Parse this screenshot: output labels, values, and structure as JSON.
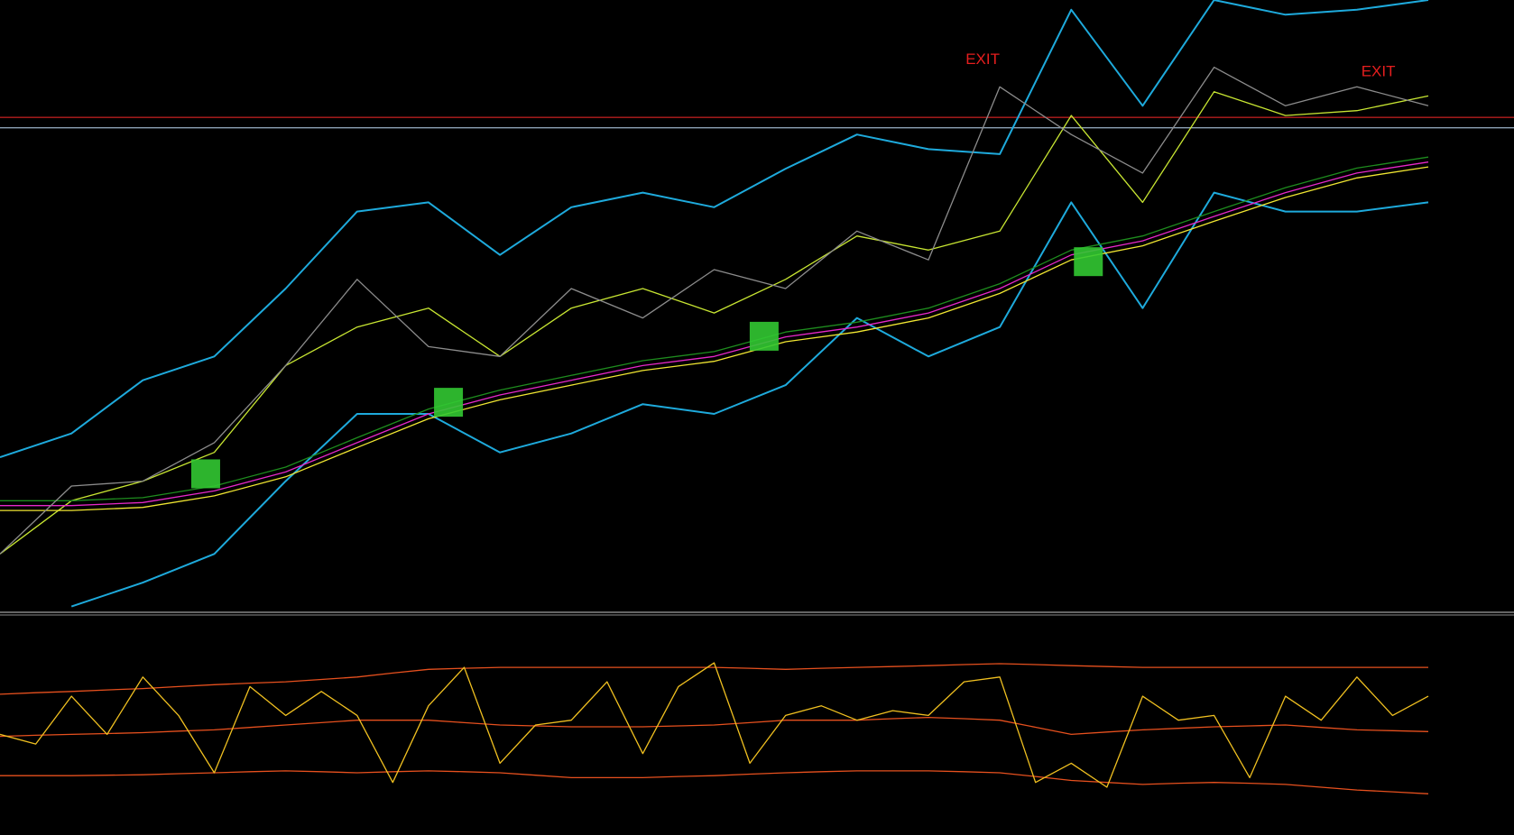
{
  "chart_data": [
    {
      "type": "line",
      "x": [
        0,
        5,
        10,
        15,
        20,
        25,
        30,
        35,
        40,
        45,
        50,
        55,
        60,
        65,
        70,
        75,
        80,
        85,
        90,
        95,
        100
      ],
      "xlim": [
        0,
        106
      ],
      "ylim": [
        0,
        100
      ],
      "hlines": [
        {
          "value": 80.8,
          "color": "#b41e1e"
        },
        {
          "value": 79.1,
          "color": "#8ca0b4"
        }
      ],
      "series": [
        {
          "color": "#1eaadc",
          "values": [
            25.2,
            29.1,
            37.8,
            41.7,
            52.8,
            65.4,
            66.9,
            58.3,
            66.1,
            68.5,
            66.1,
            72.4,
            78.0,
            75.6,
            74.8,
            98.4,
            82.7,
            100,
            97.6,
            98.4,
            100
          ]
        },
        {
          "color": "#1eaadc",
          "values": [
            null,
            0.8,
            4.7,
            9.4,
            21.3,
            32.3,
            32.3,
            26.0,
            29.1,
            33.9,
            32.3,
            37.0,
            48.0,
            41.7,
            46.5,
            66.9,
            49.6,
            68.5,
            65.4,
            65.4,
            66.9
          ]
        },
        {
          "color": "#c8e632",
          "values": [
            9.4,
            18.1,
            21.3,
            26.0,
            40.2,
            46.5,
            49.6,
            41.7,
            49.6,
            52.8,
            48.8,
            54.3,
            61.4,
            59.1,
            62.2,
            81.1,
            66.9,
            85.0,
            81.1,
            81.9,
            84.3
          ]
        },
        {
          "color": "#1e8c1e",
          "values": [
            18.1,
            18.1,
            18.6,
            20.5,
            23.6,
            28.4,
            33.1,
            36.2,
            38.6,
            41.0,
            42.5,
            45.7,
            47.3,
            49.6,
            53.6,
            59.1,
            61.4,
            65.4,
            69.3,
            72.5,
            74.3
          ]
        },
        {
          "color": "#e628c8",
          "values": [
            17.3,
            17.3,
            17.8,
            19.7,
            22.8,
            27.6,
            32.3,
            35.4,
            37.8,
            40.2,
            41.7,
            44.9,
            46.5,
            48.8,
            52.8,
            58.3,
            60.6,
            64.6,
            68.5,
            71.7,
            73.5
          ]
        },
        {
          "color": "#f0e632",
          "values": [
            16.5,
            16.5,
            17.0,
            18.9,
            22.0,
            26.8,
            31.5,
            34.6,
            37.0,
            39.4,
            40.9,
            44.1,
            45.7,
            48.0,
            52.0,
            57.5,
            59.8,
            63.8,
            67.7,
            70.9,
            72.7
          ]
        },
        {
          "color": "#8c8c8c",
          "values": [
            9.4,
            20.5,
            21.3,
            27.6,
            40.2,
            54.3,
            43.3,
            41.7,
            52.8,
            48.0,
            55.9,
            52.8,
            62.2,
            57.5,
            85.8,
            78.0,
            71.7,
            89.0,
            82.7,
            85.8,
            82.7
          ]
        }
      ],
      "markers": {
        "color": "#32c832",
        "x": [
          14.4,
          31.4,
          53.5,
          76.2
        ],
        "y": [
          22.5,
          34.2,
          45.0,
          57.2
        ]
      },
      "annotation_color": "#e61e1e",
      "annotations": [
        {
          "text": "EXIT",
          "x": 68.8,
          "y": 90.2
        },
        {
          "text": "EXIT",
          "x": 96.5,
          "y": 88.2
        }
      ]
    },
    {
      "type": "line",
      "x": [
        0,
        2.5,
        5,
        7.5,
        10,
        12.5,
        15,
        17.5,
        20,
        22.5,
        25,
        27.5,
        30,
        32.5,
        35,
        37.5,
        40,
        42.5,
        45,
        47.5,
        50,
        52.5,
        55,
        57.5,
        60,
        62.5,
        65,
        67.5,
        70,
        72.5,
        75,
        77.5,
        80,
        82.5,
        85,
        87.5,
        90,
        92.5,
        95,
        97.5,
        100
      ],
      "xlim": [
        0,
        106
      ],
      "ylim": [
        0,
        100
      ],
      "series": [
        {
          "color": "#e6501e",
          "values": [
            64.5,
            65.2,
            65.8,
            66.5,
            67.1,
            68.0,
            68.9,
            69.6,
            70.2,
            71.3,
            72.4,
            74.2,
            75.9,
            76.4,
            76.8,
            76.8,
            76.8,
            76.8,
            76.8,
            76.8,
            76.8,
            76.4,
            75.9,
            76.4,
            76.8,
            77.2,
            77.6,
            78.1,
            78.5,
            78.1,
            77.6,
            77.2,
            76.8,
            76.8,
            76.8,
            76.8,
            76.8,
            76.8,
            76.8,
            76.8,
            76.8
          ]
        },
        {
          "color": "#e6501e",
          "values": [
            45.2,
            45.7,
            46.1,
            46.5,
            46.9,
            47.6,
            48.2,
            49.3,
            50.4,
            51.5,
            52.6,
            52.6,
            52.6,
            51.5,
            50.4,
            50.0,
            49.6,
            49.6,
            49.6,
            50.0,
            50.4,
            51.5,
            52.6,
            52.6,
            52.6,
            53.3,
            53.9,
            53.3,
            52.6,
            49.4,
            46.1,
            47.2,
            48.2,
            48.9,
            49.6,
            50.0,
            50.4,
            49.3,
            48.2,
            47.8,
            47.4
          ]
        },
        {
          "color": "#e6501e",
          "values": [
            27.2,
            27.2,
            27.2,
            27.4,
            27.6,
            28.1,
            28.5,
            29.0,
            29.4,
            29.0,
            28.5,
            29.0,
            29.4,
            29.0,
            28.5,
            27.4,
            26.3,
            26.3,
            26.3,
            26.8,
            27.2,
            27.9,
            28.5,
            29.0,
            29.4,
            29.4,
            29.4,
            29.0,
            28.5,
            26.8,
            25.0,
            24.1,
            23.2,
            23.7,
            24.1,
            23.7,
            23.2,
            21.9,
            20.6,
            19.8,
            18.9
          ]
        },
        {
          "color": "#f0c020",
          "values": [
            46.1,
            41.7,
            63.6,
            46.1,
            72.4,
            54.8,
            28.5,
            68.0,
            54.8,
            65.8,
            54.8,
            24.1,
            59.2,
            76.8,
            32.9,
            50.4,
            52.6,
            70.2,
            37.3,
            68.0,
            78.9,
            32.9,
            54.8,
            59.2,
            52.6,
            57.0,
            54.8,
            70.2,
            72.4,
            24.1,
            32.9,
            21.9,
            63.6,
            52.6,
            54.8,
            26.3,
            63.6,
            52.6,
            72.4,
            54.8,
            63.6
          ]
        }
      ]
    }
  ]
}
